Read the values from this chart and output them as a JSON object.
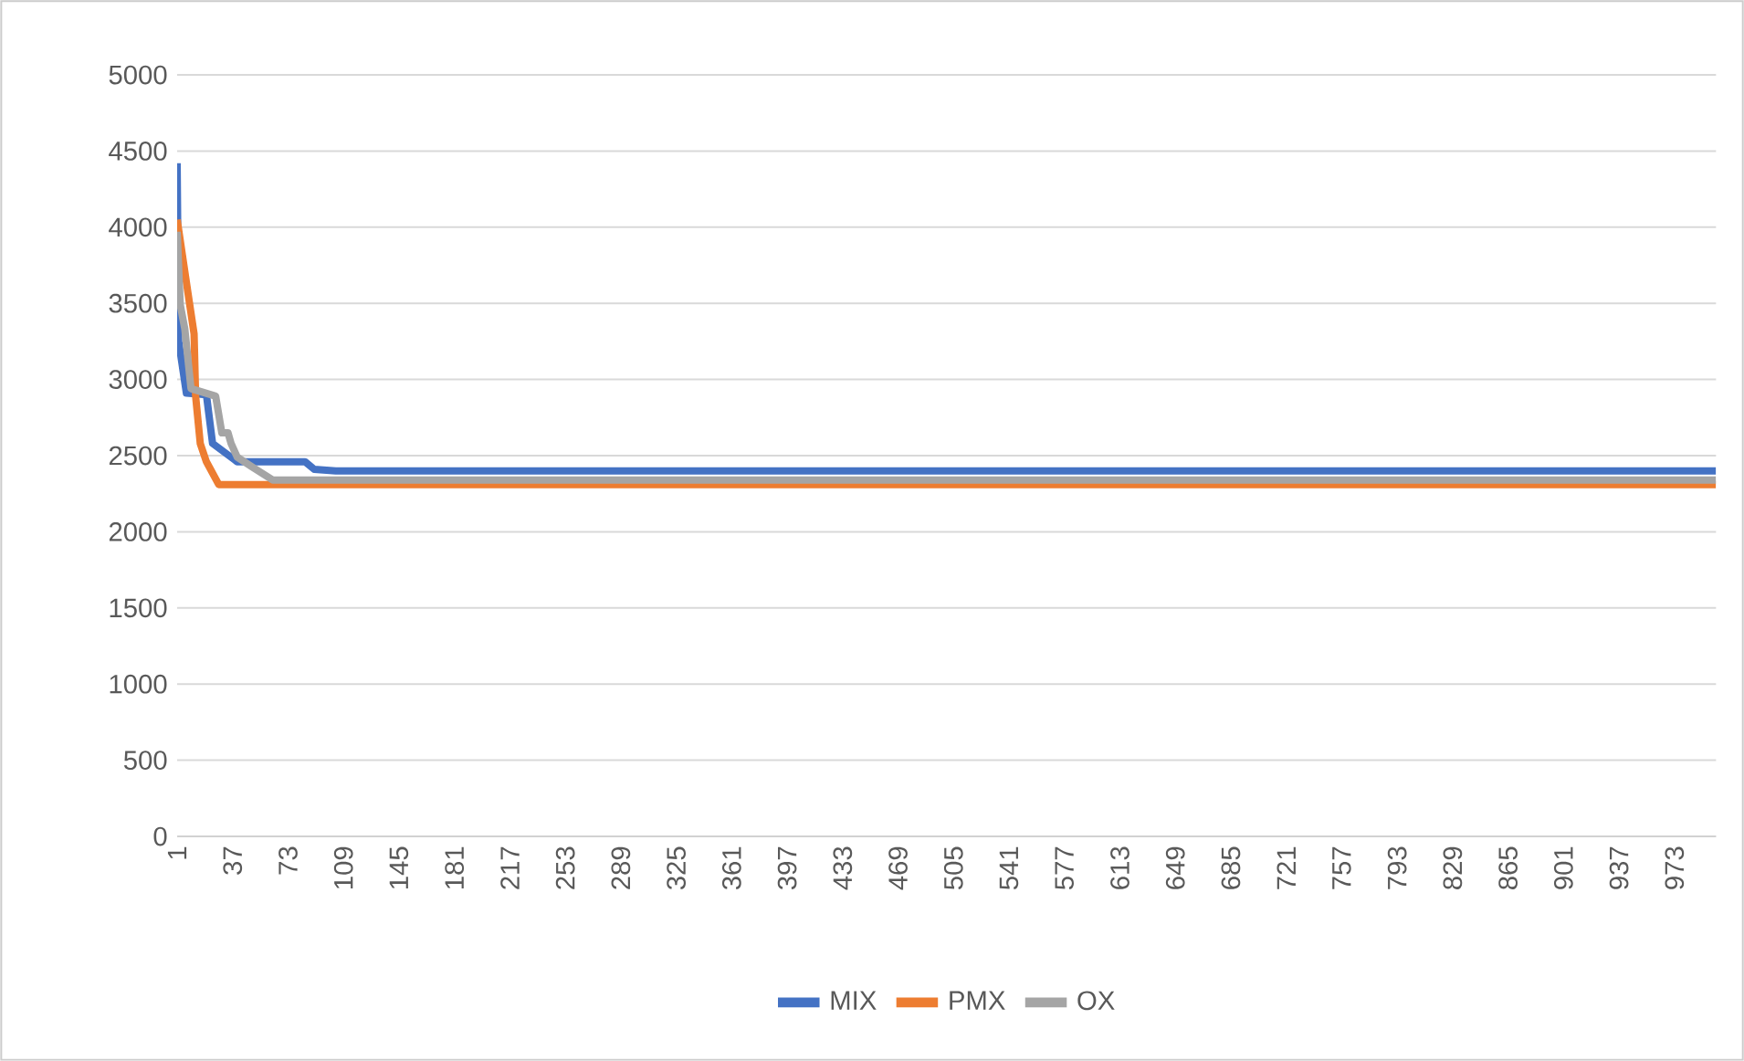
{
  "chart_data": {
    "type": "line",
    "xlim": [
      1,
      1000
    ],
    "ylim": [
      0,
      5000
    ],
    "xticks": [
      1,
      37,
      73,
      109,
      145,
      181,
      217,
      253,
      289,
      325,
      361,
      397,
      433,
      469,
      505,
      541,
      577,
      613,
      649,
      685,
      721,
      757,
      793,
      829,
      865,
      901,
      937,
      973
    ],
    "yticks": [
      0,
      500,
      1000,
      1500,
      2000,
      2500,
      3000,
      3500,
      4000,
      4500,
      5000
    ],
    "grid": "y",
    "legend": "bottom",
    "line_style": "solid",
    "series": [
      {
        "name": "MIX",
        "color": "#4472c4",
        "x": [
          1,
          2,
          7,
          20,
          24,
          40,
          84,
          90,
          104,
          1000
        ],
        "values": [
          4420,
          3250,
          2910,
          2900,
          2580,
          2460,
          2460,
          2410,
          2400,
          2400
        ]
      },
      {
        "name": "PMX",
        "color": "#ed7d31",
        "x": [
          1,
          8,
          12,
          13,
          16,
          20,
          28,
          1000
        ],
        "values": [
          4050,
          3570,
          3300,
          2890,
          2580,
          2460,
          2310,
          2310
        ]
      },
      {
        "name": "OX",
        "color": "#a5a5a5",
        "x": [
          1,
          3,
          6,
          10,
          26,
          30,
          34,
          36,
          40,
          49,
          63,
          1000
        ],
        "values": [
          3970,
          3490,
          3330,
          2940,
          2890,
          2650,
          2650,
          2580,
          2490,
          2430,
          2340,
          2340
        ]
      }
    ]
  }
}
